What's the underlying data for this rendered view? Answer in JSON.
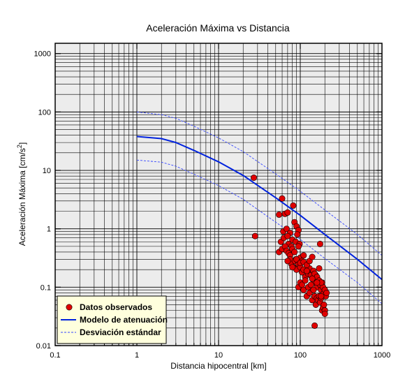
{
  "chart_data": {
    "type": "scatter",
    "title": "Aceleración Máxima vs Distancia",
    "xlabel": "Distancia hipocentral [km]",
    "ylabel": "Aceleración Máxima [cm/s",
    "ylabel_sup": "2",
    "ylabel_end": "]",
    "xscale": "log",
    "yscale": "log",
    "xlim": [
      0.1,
      1000
    ],
    "ylim": [
      0.01,
      1500
    ],
    "grid": true,
    "legend_position": "bottom-left",
    "x_tick_labels": [
      "0.1",
      "1",
      "10",
      "100",
      "1000"
    ],
    "y_tick_labels": [
      "0.01",
      "0.1",
      "1",
      "10",
      "100",
      "1000"
    ],
    "legend": {
      "observed": "Datos observados",
      "model": "Modelo de atenuación",
      "std": "Desviación estándar"
    },
    "colors": {
      "observed": "#e00000",
      "model": "#0022dd",
      "std": "#3344ff",
      "plot_bg": "#ececec",
      "legend_bg": "#ffffdd"
    },
    "model": {
      "x": [
        1,
        2,
        3,
        5,
        10,
        20,
        50,
        100,
        200,
        500,
        1000
      ],
      "y": [
        38,
        35,
        30,
        22,
        14,
        8.2,
        3.4,
        1.7,
        0.8,
        0.3,
        0.135
      ]
    },
    "std_upper": {
      "x": [
        1,
        2,
        3,
        5,
        10,
        20,
        50,
        100,
        200,
        500,
        1000
      ],
      "y": [
        100,
        90,
        78,
        57,
        36,
        21,
        8.7,
        4.4,
        2.1,
        0.8,
        0.35
      ]
    },
    "std_lower": {
      "x": [
        1,
        2,
        3,
        5,
        10,
        20,
        50,
        100,
        200,
        500,
        1000
      ],
      "y": [
        15,
        13.8,
        11.8,
        8.6,
        5.5,
        3.2,
        1.3,
        0.66,
        0.31,
        0.12,
        0.052
      ]
    },
    "observed": {
      "x": [
        27,
        28,
        60,
        65,
        70,
        82,
        55,
        62,
        68,
        75,
        85,
        90,
        95,
        58,
        63,
        70,
        72,
        78,
        80,
        88,
        92,
        98,
        55,
        60,
        65,
        68,
        72,
        75,
        80,
        85,
        88,
        95,
        100,
        105,
        110,
        75,
        78,
        82,
        86,
        90,
        95,
        100,
        105,
        110,
        115,
        120,
        125,
        130,
        135,
        140,
        145,
        150,
        155,
        160,
        165,
        170,
        175,
        180,
        185,
        190,
        195,
        200,
        205,
        210,
        95,
        100,
        105,
        110,
        115,
        120,
        125,
        130,
        135,
        140,
        145,
        150,
        155,
        160,
        165,
        170,
        175,
        180,
        185,
        190,
        195,
        200,
        70,
        80,
        90,
        100,
        110,
        120,
        130,
        140,
        150,
        160,
        170,
        180,
        120,
        140,
        160,
        180,
        200,
        150,
        175
      ],
      "y": [
        7.5,
        0.75,
        3.3,
        1.8,
        1.9,
        2.5,
        1.75,
        0.9,
        1.0,
        0.85,
        1.3,
        1.1,
        0.95,
        0.6,
        0.7,
        0.75,
        0.55,
        0.5,
        0.65,
        0.6,
        0.8,
        0.55,
        0.4,
        0.45,
        0.5,
        0.42,
        0.38,
        0.35,
        0.45,
        0.4,
        0.3,
        0.5,
        0.32,
        0.28,
        0.35,
        0.3,
        0.25,
        0.22,
        0.28,
        0.2,
        0.25,
        0.22,
        0.18,
        0.2,
        0.15,
        0.19,
        0.17,
        0.21,
        0.16,
        0.14,
        0.19,
        0.12,
        0.16,
        0.1,
        0.13,
        0.21,
        0.11,
        0.09,
        0.12,
        0.1,
        0.08,
        0.09,
        0.07,
        0.08,
        0.1,
        0.12,
        0.11,
        0.09,
        0.13,
        0.07,
        0.1,
        0.08,
        0.11,
        0.06,
        0.09,
        0.07,
        0.05,
        0.065,
        0.06,
        0.07,
        0.055,
        0.065,
        0.04,
        0.045,
        0.05,
        0.04,
        0.28,
        0.22,
        0.3,
        0.26,
        0.27,
        0.24,
        0.28,
        0.33,
        0.17,
        0.15,
        0.13,
        0.12,
        0.19,
        0.14,
        0.12,
        0.07,
        0.035,
        0.022,
        0.55
      ]
    }
  }
}
